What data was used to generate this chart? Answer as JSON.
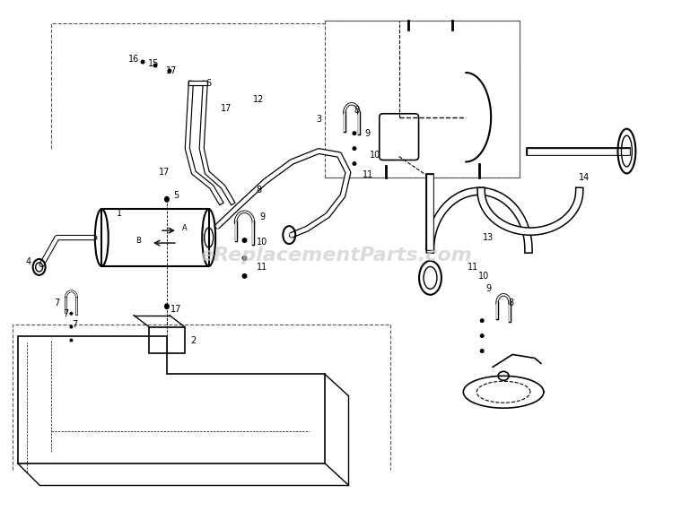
{
  "title": "",
  "bg_color": "#ffffff",
  "line_color": "#000000",
  "dashed_color": "#555555",
  "label_color": "#000000",
  "watermark_text": "eReplacementParts.com",
  "watermark_color": "#cccccc",
  "watermark_fontsize": 16,
  "fig_width": 7.5,
  "fig_height": 5.7,
  "dpi": 100,
  "label_fontsize": 7.0,
  "labels": [
    [
      "1",
      1.32,
      3.32
    ],
    [
      "2",
      2.15,
      1.9
    ],
    [
      "3",
      3.55,
      4.38
    ],
    [
      "4",
      0.3,
      2.78
    ],
    [
      "5",
      1.95,
      3.52
    ],
    [
      "6",
      2.32,
      4.78
    ],
    [
      "7",
      0.62,
      2.32
    ],
    [
      "7",
      0.72,
      2.2
    ],
    [
      "7",
      0.82,
      2.08
    ],
    [
      "8",
      2.88,
      3.58
    ],
    [
      "9",
      2.92,
      3.28
    ],
    [
      "10",
      2.92,
      3.0
    ],
    [
      "11",
      2.92,
      2.72
    ],
    [
      "12",
      2.88,
      4.6
    ],
    [
      "13",
      5.45,
      3.05
    ],
    [
      "14",
      6.52,
      3.72
    ],
    [
      "15",
      1.7,
      5.0
    ],
    [
      "16",
      1.48,
      5.05
    ],
    [
      "17",
      1.9,
      4.92
    ],
    [
      "17",
      2.52,
      4.5
    ],
    [
      "17",
      1.82,
      3.78
    ],
    [
      "17",
      1.95,
      2.25
    ],
    [
      "8",
      3.98,
      4.48
    ],
    [
      "9",
      4.1,
      4.22
    ],
    [
      "10",
      4.18,
      3.98
    ],
    [
      "11",
      4.1,
      3.75
    ],
    [
      "8",
      5.7,
      2.32
    ],
    [
      "9",
      5.45,
      2.48
    ],
    [
      "10",
      5.4,
      2.62
    ],
    [
      "11",
      5.28,
      2.72
    ]
  ]
}
